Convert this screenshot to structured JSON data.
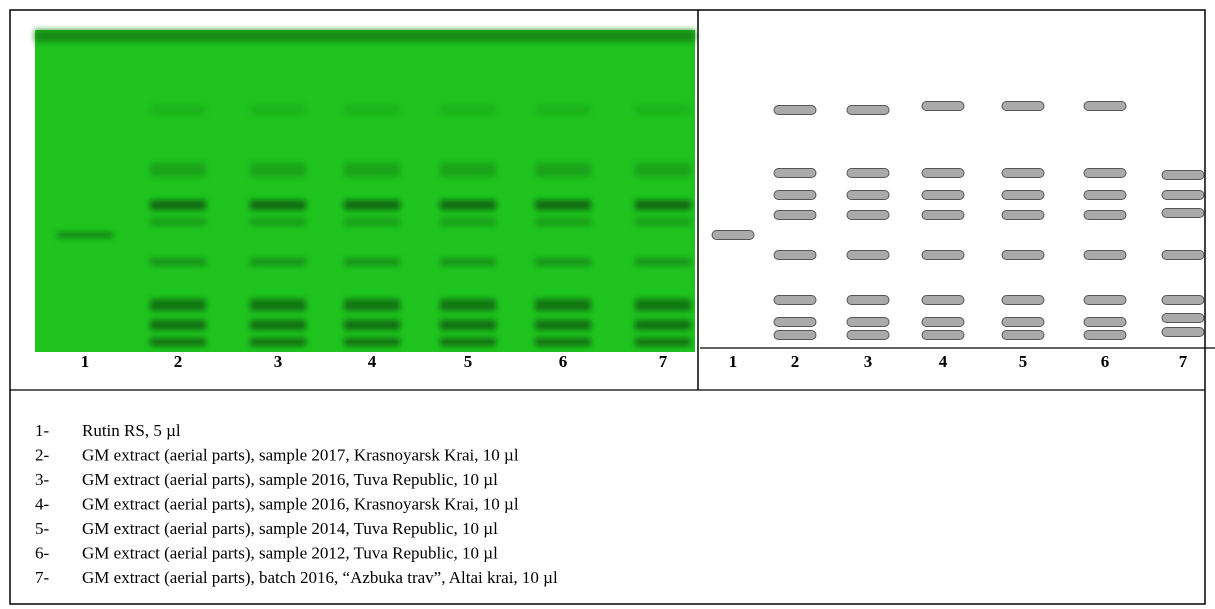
{
  "plate_lanes": [
    "1",
    "2",
    "3",
    "4",
    "5",
    "6",
    "7"
  ],
  "scheme_lanes": [
    "1",
    "2",
    "3",
    "4",
    "5",
    "6",
    "7"
  ],
  "legend": [
    {
      "number": "1-",
      "text": "Rutin RS, 5 µl"
    },
    {
      "number": "2-",
      "text": "GM extract (aerial parts), sample 2017, Krasnoyarsk Krai, 10 µl"
    },
    {
      "number": "3-",
      "text": "GM extract (aerial parts), sample 2016, Tuva Republic, 10 µl"
    },
    {
      "number": "4-",
      "text": "GM extract (aerial parts), sample 2016, Krasnoyarsk Krai, 10 µl"
    },
    {
      "number": "5-",
      "text": "GM extract (aerial parts), sample 2014, Tuva Republic, 10 µl"
    },
    {
      "number": "6-",
      "text": "GM extract (aerial parts), sample 2012, Tuva Republic, 10 µl"
    },
    {
      "number": "7-",
      "text": "GM extract (aerial parts), batch 2016, “Azbuka trav”, Altai krai, 10 µl"
    }
  ]
}
